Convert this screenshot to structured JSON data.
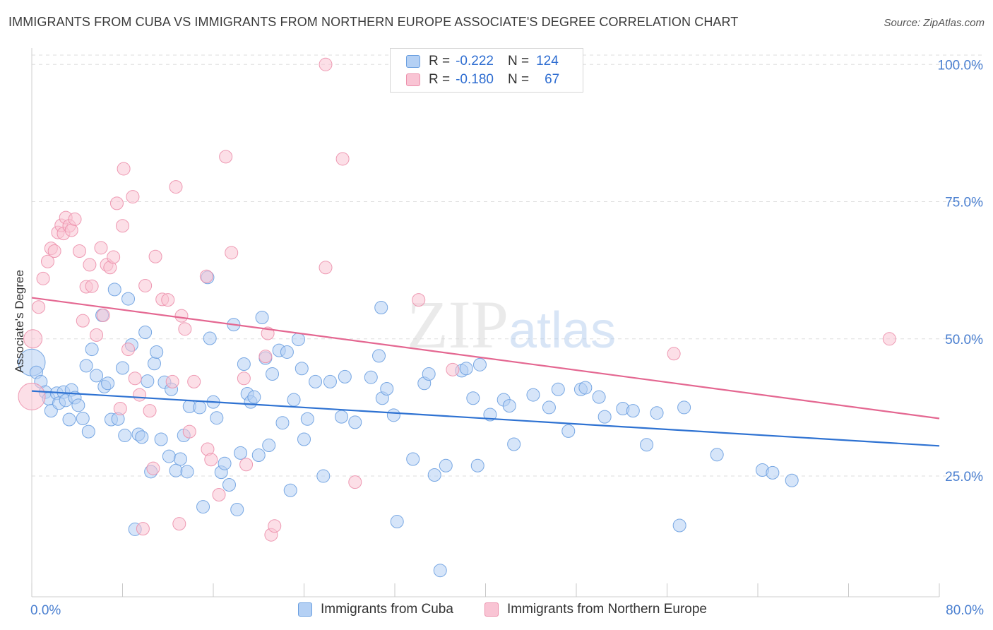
{
  "header": {
    "title": "IMMIGRANTS FROM CUBA VS IMMIGRANTS FROM NORTHERN EUROPE ASSOCIATE'S DEGREE CORRELATION CHART",
    "source": "Source: ZipAtlas.com"
  },
  "watermark": {
    "zip": "ZIP",
    "atlas": "atlas"
  },
  "colors": {
    "blue_fill": "#b4d0f4",
    "blue_stroke": "#6a9fe0",
    "blue_line": "#2e72d2",
    "pink_fill": "#f9c4d4",
    "pink_stroke": "#ec8fab",
    "pink_line": "#e46791",
    "tick_label": "#4a7fd0"
  },
  "legend": {
    "r_label": "R =",
    "n_label": "N =",
    "rows": [
      {
        "r": "-0.222",
        "n": "124"
      },
      {
        "r": "-0.180",
        "n": "67"
      }
    ]
  },
  "chart_data": {
    "type": "scatter",
    "title": "IMMIGRANTS FROM CUBA VS IMMIGRANTS FROM NORTHERN EUROPE ASSOCIATE'S DEGREE CORRELATION CHART",
    "xlabel": "",
    "ylabel": "Associate's Degree",
    "xlim": [
      0,
      80
    ],
    "ylim": [
      3,
      103
    ],
    "x_tick_labels": [
      "0.0%",
      "80.0%"
    ],
    "y_ticks": [
      25,
      50,
      75,
      100
    ],
    "y_tick_labels": [
      "25.0%",
      "50.0%",
      "75.0%",
      "100.0%"
    ],
    "grid": "horizontal dashed",
    "legend_position": "top-center",
    "series": [
      {
        "name": "Immigrants from Cuba",
        "r": -0.222,
        "n": 124,
        "trend": {
          "x": [
            0,
            80
          ],
          "y": [
            40.5,
            30.5
          ]
        },
        "points": [
          {
            "x": 0.0,
            "y": 45.7,
            "big": true
          },
          {
            "x": 0.4,
            "y": 43.9
          },
          {
            "x": 0.8,
            "y": 42.2
          },
          {
            "x": 1.2,
            "y": 40.3
          },
          {
            "x": 1.5,
            "y": 39.1
          },
          {
            "x": 1.7,
            "y": 36.9
          },
          {
            "x": 2.2,
            "y": 40.1
          },
          {
            "x": 2.4,
            "y": 38.3
          },
          {
            "x": 2.8,
            "y": 40.3
          },
          {
            "x": 3.0,
            "y": 38.8
          },
          {
            "x": 3.3,
            "y": 35.3
          },
          {
            "x": 3.5,
            "y": 40.7
          },
          {
            "x": 3.8,
            "y": 39.3
          },
          {
            "x": 4.1,
            "y": 37.9
          },
          {
            "x": 4.5,
            "y": 35.5
          },
          {
            "x": 4.8,
            "y": 45.1
          },
          {
            "x": 5.0,
            "y": 33.1
          },
          {
            "x": 5.3,
            "y": 48.1
          },
          {
            "x": 5.7,
            "y": 43.3
          },
          {
            "x": 6.2,
            "y": 54.3
          },
          {
            "x": 6.4,
            "y": 41.3
          },
          {
            "x": 6.7,
            "y": 41.9
          },
          {
            "x": 7.0,
            "y": 35.3
          },
          {
            "x": 7.3,
            "y": 59.0
          },
          {
            "x": 7.6,
            "y": 35.4
          },
          {
            "x": 8.0,
            "y": 44.7
          },
          {
            "x": 8.2,
            "y": 32.4
          },
          {
            "x": 8.5,
            "y": 57.3
          },
          {
            "x": 8.8,
            "y": 48.9
          },
          {
            "x": 9.1,
            "y": 15.3
          },
          {
            "x": 9.4,
            "y": 32.6
          },
          {
            "x": 9.7,
            "y": 32.1
          },
          {
            "x": 10.0,
            "y": 51.2
          },
          {
            "x": 10.2,
            "y": 42.3
          },
          {
            "x": 10.5,
            "y": 25.8
          },
          {
            "x": 10.8,
            "y": 45.5
          },
          {
            "x": 11.0,
            "y": 47.6
          },
          {
            "x": 11.4,
            "y": 31.7
          },
          {
            "x": 11.7,
            "y": 42.1
          },
          {
            "x": 12.1,
            "y": 28.6
          },
          {
            "x": 12.3,
            "y": 40.8
          },
          {
            "x": 12.7,
            "y": 26.0
          },
          {
            "x": 13.1,
            "y": 28.1
          },
          {
            "x": 13.4,
            "y": 32.4
          },
          {
            "x": 13.7,
            "y": 25.8
          },
          {
            "x": 13.9,
            "y": 37.7
          },
          {
            "x": 14.8,
            "y": 37.5
          },
          {
            "x": 15.1,
            "y": 19.4
          },
          {
            "x": 15.5,
            "y": 61.2
          },
          {
            "x": 15.7,
            "y": 50.1
          },
          {
            "x": 16.0,
            "y": 38.5
          },
          {
            "x": 16.3,
            "y": 35.6
          },
          {
            "x": 16.7,
            "y": 25.7
          },
          {
            "x": 17.0,
            "y": 27.3
          },
          {
            "x": 17.4,
            "y": 23.4
          },
          {
            "x": 17.8,
            "y": 52.6
          },
          {
            "x": 18.1,
            "y": 18.9
          },
          {
            "x": 18.4,
            "y": 29.2
          },
          {
            "x": 18.7,
            "y": 45.4
          },
          {
            "x": 19.0,
            "y": 40.0
          },
          {
            "x": 19.3,
            "y": 38.5
          },
          {
            "x": 19.6,
            "y": 39.4
          },
          {
            "x": 20.0,
            "y": 28.8
          },
          {
            "x": 20.3,
            "y": 53.9
          },
          {
            "x": 20.6,
            "y": 46.5
          },
          {
            "x": 20.9,
            "y": 30.6
          },
          {
            "x": 21.2,
            "y": 43.6
          },
          {
            "x": 21.8,
            "y": 47.9
          },
          {
            "x": 22.1,
            "y": 34.7
          },
          {
            "x": 22.5,
            "y": 47.6
          },
          {
            "x": 22.8,
            "y": 22.4
          },
          {
            "x": 23.1,
            "y": 38.9
          },
          {
            "x": 23.5,
            "y": 49.9
          },
          {
            "x": 23.8,
            "y": 44.6
          },
          {
            "x": 24.0,
            "y": 31.7
          },
          {
            "x": 24.3,
            "y": 35.4
          },
          {
            "x": 25.0,
            "y": 42.2
          },
          {
            "x": 25.7,
            "y": 25.0
          },
          {
            "x": 26.3,
            "y": 42.2
          },
          {
            "x": 27.3,
            "y": 35.8
          },
          {
            "x": 27.6,
            "y": 43.1
          },
          {
            "x": 28.5,
            "y": 34.8
          },
          {
            "x": 29.9,
            "y": 43.0
          },
          {
            "x": 30.6,
            "y": 46.9
          },
          {
            "x": 30.8,
            "y": 55.7
          },
          {
            "x": 30.9,
            "y": 39.2
          },
          {
            "x": 31.3,
            "y": 40.9
          },
          {
            "x": 31.9,
            "y": 36.1
          },
          {
            "x": 32.2,
            "y": 16.7
          },
          {
            "x": 33.6,
            "y": 28.1
          },
          {
            "x": 34.6,
            "y": 41.9
          },
          {
            "x": 35.0,
            "y": 43.6
          },
          {
            "x": 35.5,
            "y": 25.2
          },
          {
            "x": 36.0,
            "y": 7.8
          },
          {
            "x": 36.5,
            "y": 26.9
          },
          {
            "x": 37.9,
            "y": 44.2
          },
          {
            "x": 38.3,
            "y": 44.6
          },
          {
            "x": 38.9,
            "y": 39.2
          },
          {
            "x": 39.3,
            "y": 26.9
          },
          {
            "x": 39.5,
            "y": 45.3
          },
          {
            "x": 40.4,
            "y": 36.2
          },
          {
            "x": 41.6,
            "y": 38.9
          },
          {
            "x": 42.1,
            "y": 37.8
          },
          {
            "x": 42.5,
            "y": 30.8
          },
          {
            "x": 44.2,
            "y": 39.8
          },
          {
            "x": 45.6,
            "y": 37.5
          },
          {
            "x": 46.4,
            "y": 40.8
          },
          {
            "x": 47.3,
            "y": 33.2
          },
          {
            "x": 48.4,
            "y": 40.8
          },
          {
            "x": 48.8,
            "y": 41.1
          },
          {
            "x": 50.0,
            "y": 39.4
          },
          {
            "x": 50.5,
            "y": 35.8
          },
          {
            "x": 52.1,
            "y": 37.3
          },
          {
            "x": 53.0,
            "y": 36.9
          },
          {
            "x": 54.2,
            "y": 30.7
          },
          {
            "x": 55.1,
            "y": 36.5
          },
          {
            "x": 57.1,
            "y": 16.0
          },
          {
            "x": 57.5,
            "y": 37.5
          },
          {
            "x": 60.4,
            "y": 28.9
          },
          {
            "x": 64.4,
            "y": 26.1
          },
          {
            "x": 65.3,
            "y": 25.6
          },
          {
            "x": 67.0,
            "y": 24.2
          }
        ]
      },
      {
        "name": "Immigrants from Northern Europe",
        "r": -0.18,
        "n": 67,
        "trend": {
          "x": [
            0,
            80
          ],
          "y": [
            57.5,
            35.5
          ]
        },
        "points": [
          {
            "x": 0.0,
            "y": 39.5,
            "big": true
          },
          {
            "x": 0.1,
            "y": 50.0,
            "big2": true
          },
          {
            "x": 0.6,
            "y": 55.8
          },
          {
            "x": 1.0,
            "y": 61.0
          },
          {
            "x": 1.4,
            "y": 64.1
          },
          {
            "x": 1.7,
            "y": 66.5
          },
          {
            "x": 2.0,
            "y": 66.0
          },
          {
            "x": 2.3,
            "y": 69.4
          },
          {
            "x": 2.6,
            "y": 70.7
          },
          {
            "x": 2.8,
            "y": 69.2
          },
          {
            "x": 3.0,
            "y": 72.1
          },
          {
            "x": 3.3,
            "y": 70.6
          },
          {
            "x": 3.5,
            "y": 69.8
          },
          {
            "x": 3.8,
            "y": 71.8
          },
          {
            "x": 4.2,
            "y": 66.0
          },
          {
            "x": 4.5,
            "y": 53.3
          },
          {
            "x": 4.8,
            "y": 59.5
          },
          {
            "x": 5.1,
            "y": 63.5
          },
          {
            "x": 5.3,
            "y": 59.6
          },
          {
            "x": 5.7,
            "y": 50.7
          },
          {
            "x": 6.1,
            "y": 66.6
          },
          {
            "x": 6.3,
            "y": 54.3
          },
          {
            "x": 6.6,
            "y": 63.5
          },
          {
            "x": 6.9,
            "y": 63.0
          },
          {
            "x": 7.2,
            "y": 64.9
          },
          {
            "x": 7.5,
            "y": 74.7
          },
          {
            "x": 7.8,
            "y": 37.3
          },
          {
            "x": 8.0,
            "y": 70.6
          },
          {
            "x": 8.1,
            "y": 81.0
          },
          {
            "x": 8.5,
            "y": 48.1
          },
          {
            "x": 8.9,
            "y": 75.9
          },
          {
            "x": 9.1,
            "y": 42.8
          },
          {
            "x": 9.5,
            "y": 39.8
          },
          {
            "x": 9.8,
            "y": 15.4
          },
          {
            "x": 10.0,
            "y": 59.7
          },
          {
            "x": 10.4,
            "y": 36.9
          },
          {
            "x": 10.7,
            "y": 26.4
          },
          {
            "x": 10.9,
            "y": 65.0
          },
          {
            "x": 11.5,
            "y": 57.2
          },
          {
            "x": 12.0,
            "y": 57.1
          },
          {
            "x": 12.4,
            "y": 42.2
          },
          {
            "x": 12.7,
            "y": 77.7
          },
          {
            "x": 13.0,
            "y": 16.3
          },
          {
            "x": 13.2,
            "y": 54.2
          },
          {
            "x": 13.5,
            "y": 51.8
          },
          {
            "x": 13.9,
            "y": 33.1
          },
          {
            "x": 14.3,
            "y": 42.2
          },
          {
            "x": 15.4,
            "y": 61.4
          },
          {
            "x": 15.5,
            "y": 29.9
          },
          {
            "x": 15.8,
            "y": 28.0
          },
          {
            "x": 16.5,
            "y": 21.6
          },
          {
            "x": 17.1,
            "y": 83.2
          },
          {
            "x": 17.6,
            "y": 65.7
          },
          {
            "x": 18.7,
            "y": 42.8
          },
          {
            "x": 18.9,
            "y": 27.1
          },
          {
            "x": 20.6,
            "y": 46.8
          },
          {
            "x": 20.8,
            "y": 51.0
          },
          {
            "x": 21.1,
            "y": 14.3
          },
          {
            "x": 21.4,
            "y": 15.9
          },
          {
            "x": 25.9,
            "y": 63.0
          },
          {
            "x": 25.9,
            "y": 100.0
          },
          {
            "x": 27.4,
            "y": 82.8
          },
          {
            "x": 28.5,
            "y": 23.9
          },
          {
            "x": 34.1,
            "y": 57.1
          },
          {
            "x": 37.1,
            "y": 44.4
          },
          {
            "x": 56.6,
            "y": 47.3
          },
          {
            "x": 75.6,
            "y": 50.0
          }
        ]
      }
    ]
  },
  "bottom_legend": {
    "items": [
      "Immigrants from Cuba",
      "Immigrants from Northern Europe"
    ]
  }
}
